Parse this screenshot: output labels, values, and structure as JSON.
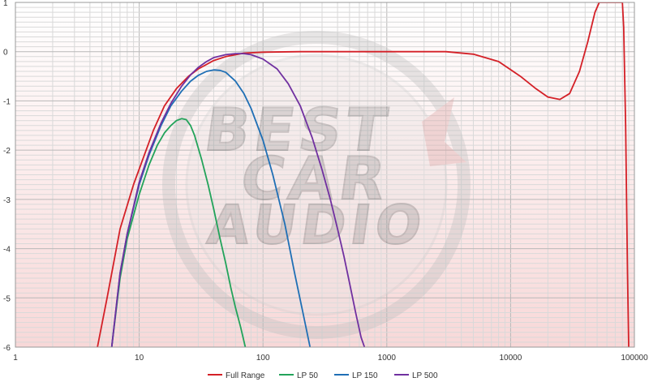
{
  "chart_data": {
    "type": "line",
    "title": "",
    "xlabel": "",
    "ylabel": "",
    "xscale": "log",
    "xlim": [
      1,
      100000
    ],
    "ylim": [
      -6,
      1
    ],
    "grid": true,
    "legend_position": "bottom",
    "x_ticks": [
      "1",
      "10",
      "100",
      "1000",
      "10000",
      "100000"
    ],
    "y_ticks": [
      "1",
      "0",
      "-1",
      "-2",
      "-3",
      "-4",
      "-5",
      "-6"
    ],
    "colors": {
      "plot_bg": "#fdf3f3",
      "grid_major": "#b8b8b8",
      "grid_minor": "#d9d9d9"
    },
    "series": [
      {
        "name": "Full Range",
        "color": "#d42027",
        "x": [
          4.6,
          5.5,
          7,
          9,
          11,
          13,
          16,
          20,
          25,
          30,
          40,
          50,
          70,
          100,
          200,
          500,
          1000,
          2000,
          3000,
          5000,
          8000,
          12000,
          16000,
          20000,
          25000,
          30000,
          36000,
          42000,
          48000,
          52000,
          80000,
          82000,
          85000,
          88000,
          90000
        ],
        "y": [
          -6,
          -5.0,
          -3.6,
          -2.7,
          -2.1,
          -1.6,
          -1.1,
          -0.75,
          -0.5,
          -0.35,
          -0.18,
          -0.1,
          -0.03,
          -0.01,
          0,
          0,
          0,
          0,
          0,
          -0.05,
          -0.2,
          -0.5,
          -0.75,
          -0.92,
          -0.97,
          -0.85,
          -0.4,
          0.2,
          0.8,
          1,
          1,
          0.5,
          -1.5,
          -4.5,
          -6
        ]
      },
      {
        "name": "LP 50",
        "color": "#22a35a",
        "x": [
          6,
          7,
          8,
          10,
          12,
          14,
          16,
          18,
          20,
          22,
          24,
          26,
          28,
          32,
          36,
          40,
          45,
          50,
          55,
          60,
          66,
          72
        ],
        "y": [
          -6,
          -4.6,
          -3.8,
          -2.9,
          -2.3,
          -1.9,
          -1.65,
          -1.5,
          -1.4,
          -1.36,
          -1.38,
          -1.5,
          -1.7,
          -2.2,
          -2.7,
          -3.2,
          -3.8,
          -4.3,
          -4.8,
          -5.2,
          -5.6,
          -6
        ]
      },
      {
        "name": "LP 150",
        "color": "#1f6fb5",
        "x": [
          6,
          7,
          8,
          10,
          12,
          15,
          18,
          22,
          26,
          30,
          35,
          40,
          45,
          50,
          60,
          70,
          80,
          100,
          120,
          150,
          180,
          210,
          240
        ],
        "y": [
          -6,
          -4.5,
          -3.7,
          -2.7,
          -2.1,
          -1.5,
          -1.1,
          -0.8,
          -0.6,
          -0.48,
          -0.4,
          -0.37,
          -0.38,
          -0.42,
          -0.6,
          -0.85,
          -1.15,
          -1.8,
          -2.5,
          -3.5,
          -4.5,
          -5.3,
          -6
        ]
      },
      {
        "name": "LP 500",
        "color": "#7030a0",
        "x": [
          6,
          7,
          8,
          10,
          12,
          15,
          18,
          22,
          26,
          30,
          35,
          40,
          50,
          60,
          70,
          80,
          100,
          130,
          160,
          200,
          250,
          300,
          350,
          400,
          450,
          500,
          560,
          620,
          660
        ],
        "y": [
          -6,
          -4.5,
          -3.7,
          -2.65,
          -2.05,
          -1.45,
          -1.05,
          -0.7,
          -0.47,
          -0.32,
          -0.2,
          -0.12,
          -0.06,
          -0.04,
          -0.04,
          -0.06,
          -0.15,
          -0.35,
          -0.65,
          -1.1,
          -1.75,
          -2.4,
          -3.0,
          -3.6,
          -4.15,
          -4.7,
          -5.3,
          -5.8,
          -6
        ]
      }
    ]
  }
}
